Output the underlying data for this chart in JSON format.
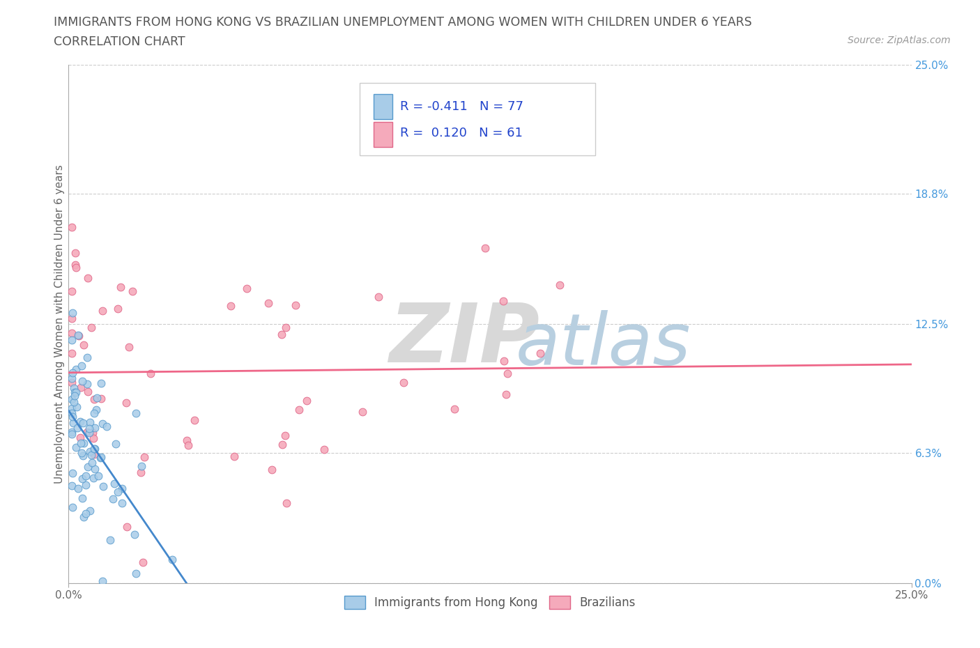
{
  "title_line1": "IMMIGRANTS FROM HONG KONG VS BRAZILIAN UNEMPLOYMENT AMONG WOMEN WITH CHILDREN UNDER 6 YEARS",
  "title_line2": "CORRELATION CHART",
  "source_text": "Source: ZipAtlas.com",
  "ylabel": "Unemployment Among Women with Children Under 6 years",
  "xlim": [
    0.0,
    0.25
  ],
  "ylim": [
    0.0,
    0.25
  ],
  "ytick_values": [
    0.0,
    0.063,
    0.125,
    0.188,
    0.25
  ],
  "ytick_right_labels": [
    "0.0%",
    "6.3%",
    "12.5%",
    "18.8%",
    "25.0%"
  ],
  "xtick_values": [
    0.0,
    0.25
  ],
  "xtick_labels": [
    "0.0%",
    "25.0%"
  ],
  "watermark_zip": "ZIP",
  "watermark_atlas": "atlas",
  "hk_fill_color": "#a8cce8",
  "hk_edge_color": "#5599cc",
  "br_fill_color": "#f5aabb",
  "br_edge_color": "#e06688",
  "hk_line_color": "#4488cc",
  "br_line_color": "#ee6688",
  "r_hk": -0.411,
  "n_hk": 77,
  "r_br": 0.12,
  "n_br": 61,
  "legend_label_hk": "Immigrants from Hong Kong",
  "legend_label_br": "Brazilians",
  "label_color": "#2244cc",
  "grid_color": "#cccccc",
  "bg_color": "#ffffff",
  "right_tick_color": "#4499dd",
  "title_color": "#555555",
  "source_color": "#999999"
}
